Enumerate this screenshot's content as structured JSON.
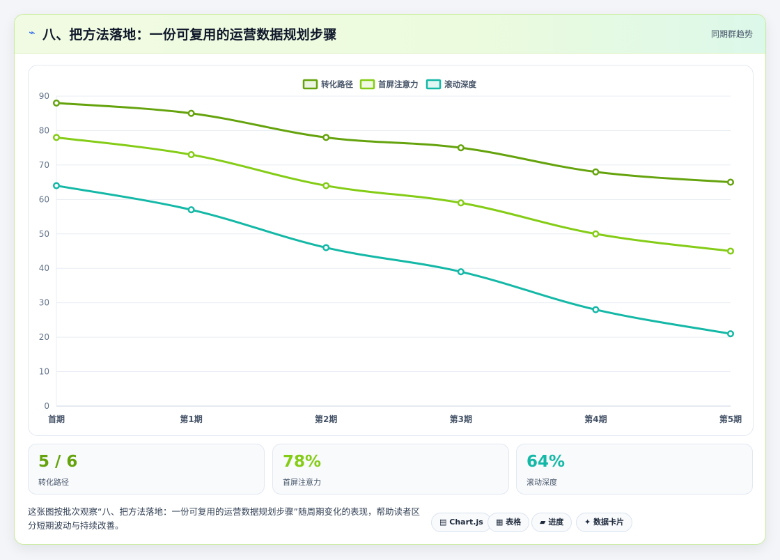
{
  "header": {
    "icon": "bolt-icon",
    "title": "八、把方法落地：一份可复用的运营数据规划步骤",
    "tag": "同期群趋势"
  },
  "chart_data": {
    "type": "line",
    "categories": [
      "首期",
      "第1期",
      "第2期",
      "第3期",
      "第4期",
      "第5期"
    ],
    "series": [
      {
        "name": "转化路径",
        "color": "#65a30d",
        "values": [
          88,
          85,
          78,
          75,
          68,
          65
        ]
      },
      {
        "name": "首屏注意力",
        "color": "#84cc16",
        "values": [
          78,
          73,
          64,
          59,
          50,
          45
        ]
      },
      {
        "name": "滚动深度",
        "color": "#14b8a6",
        "values": [
          64,
          57,
          46,
          39,
          28,
          21
        ]
      }
    ],
    "ylim": [
      0,
      90
    ],
    "yticks": [
      0,
      10,
      20,
      30,
      40,
      50,
      60,
      70,
      80,
      90
    ],
    "grid": true,
    "legend": "top-center"
  },
  "stats": [
    {
      "value": "5 / 6",
      "label": "转化路径",
      "color": "#65a30d"
    },
    {
      "value": "78%",
      "label": "首屏注意力",
      "color": "#84cc16"
    },
    {
      "value": "64%",
      "label": "滚动深度",
      "color": "#14b8a6"
    }
  ],
  "caption": "这张图按批次观察“八、把方法落地：一份可复用的运营数据规划步骤”随周期变化的表现，帮助读者区分短期波动与持续改善。",
  "chips": [
    {
      "icon": "chart-icon",
      "glyph": "▤",
      "label": "Chart.js"
    },
    {
      "icon": "table-icon",
      "glyph": "▦",
      "label": "表格"
    },
    {
      "icon": "progress-icon",
      "glyph": "▰",
      "label": "进度"
    },
    {
      "icon": "sparkle-icon",
      "glyph": "✦",
      "label": "数据卡片"
    }
  ]
}
